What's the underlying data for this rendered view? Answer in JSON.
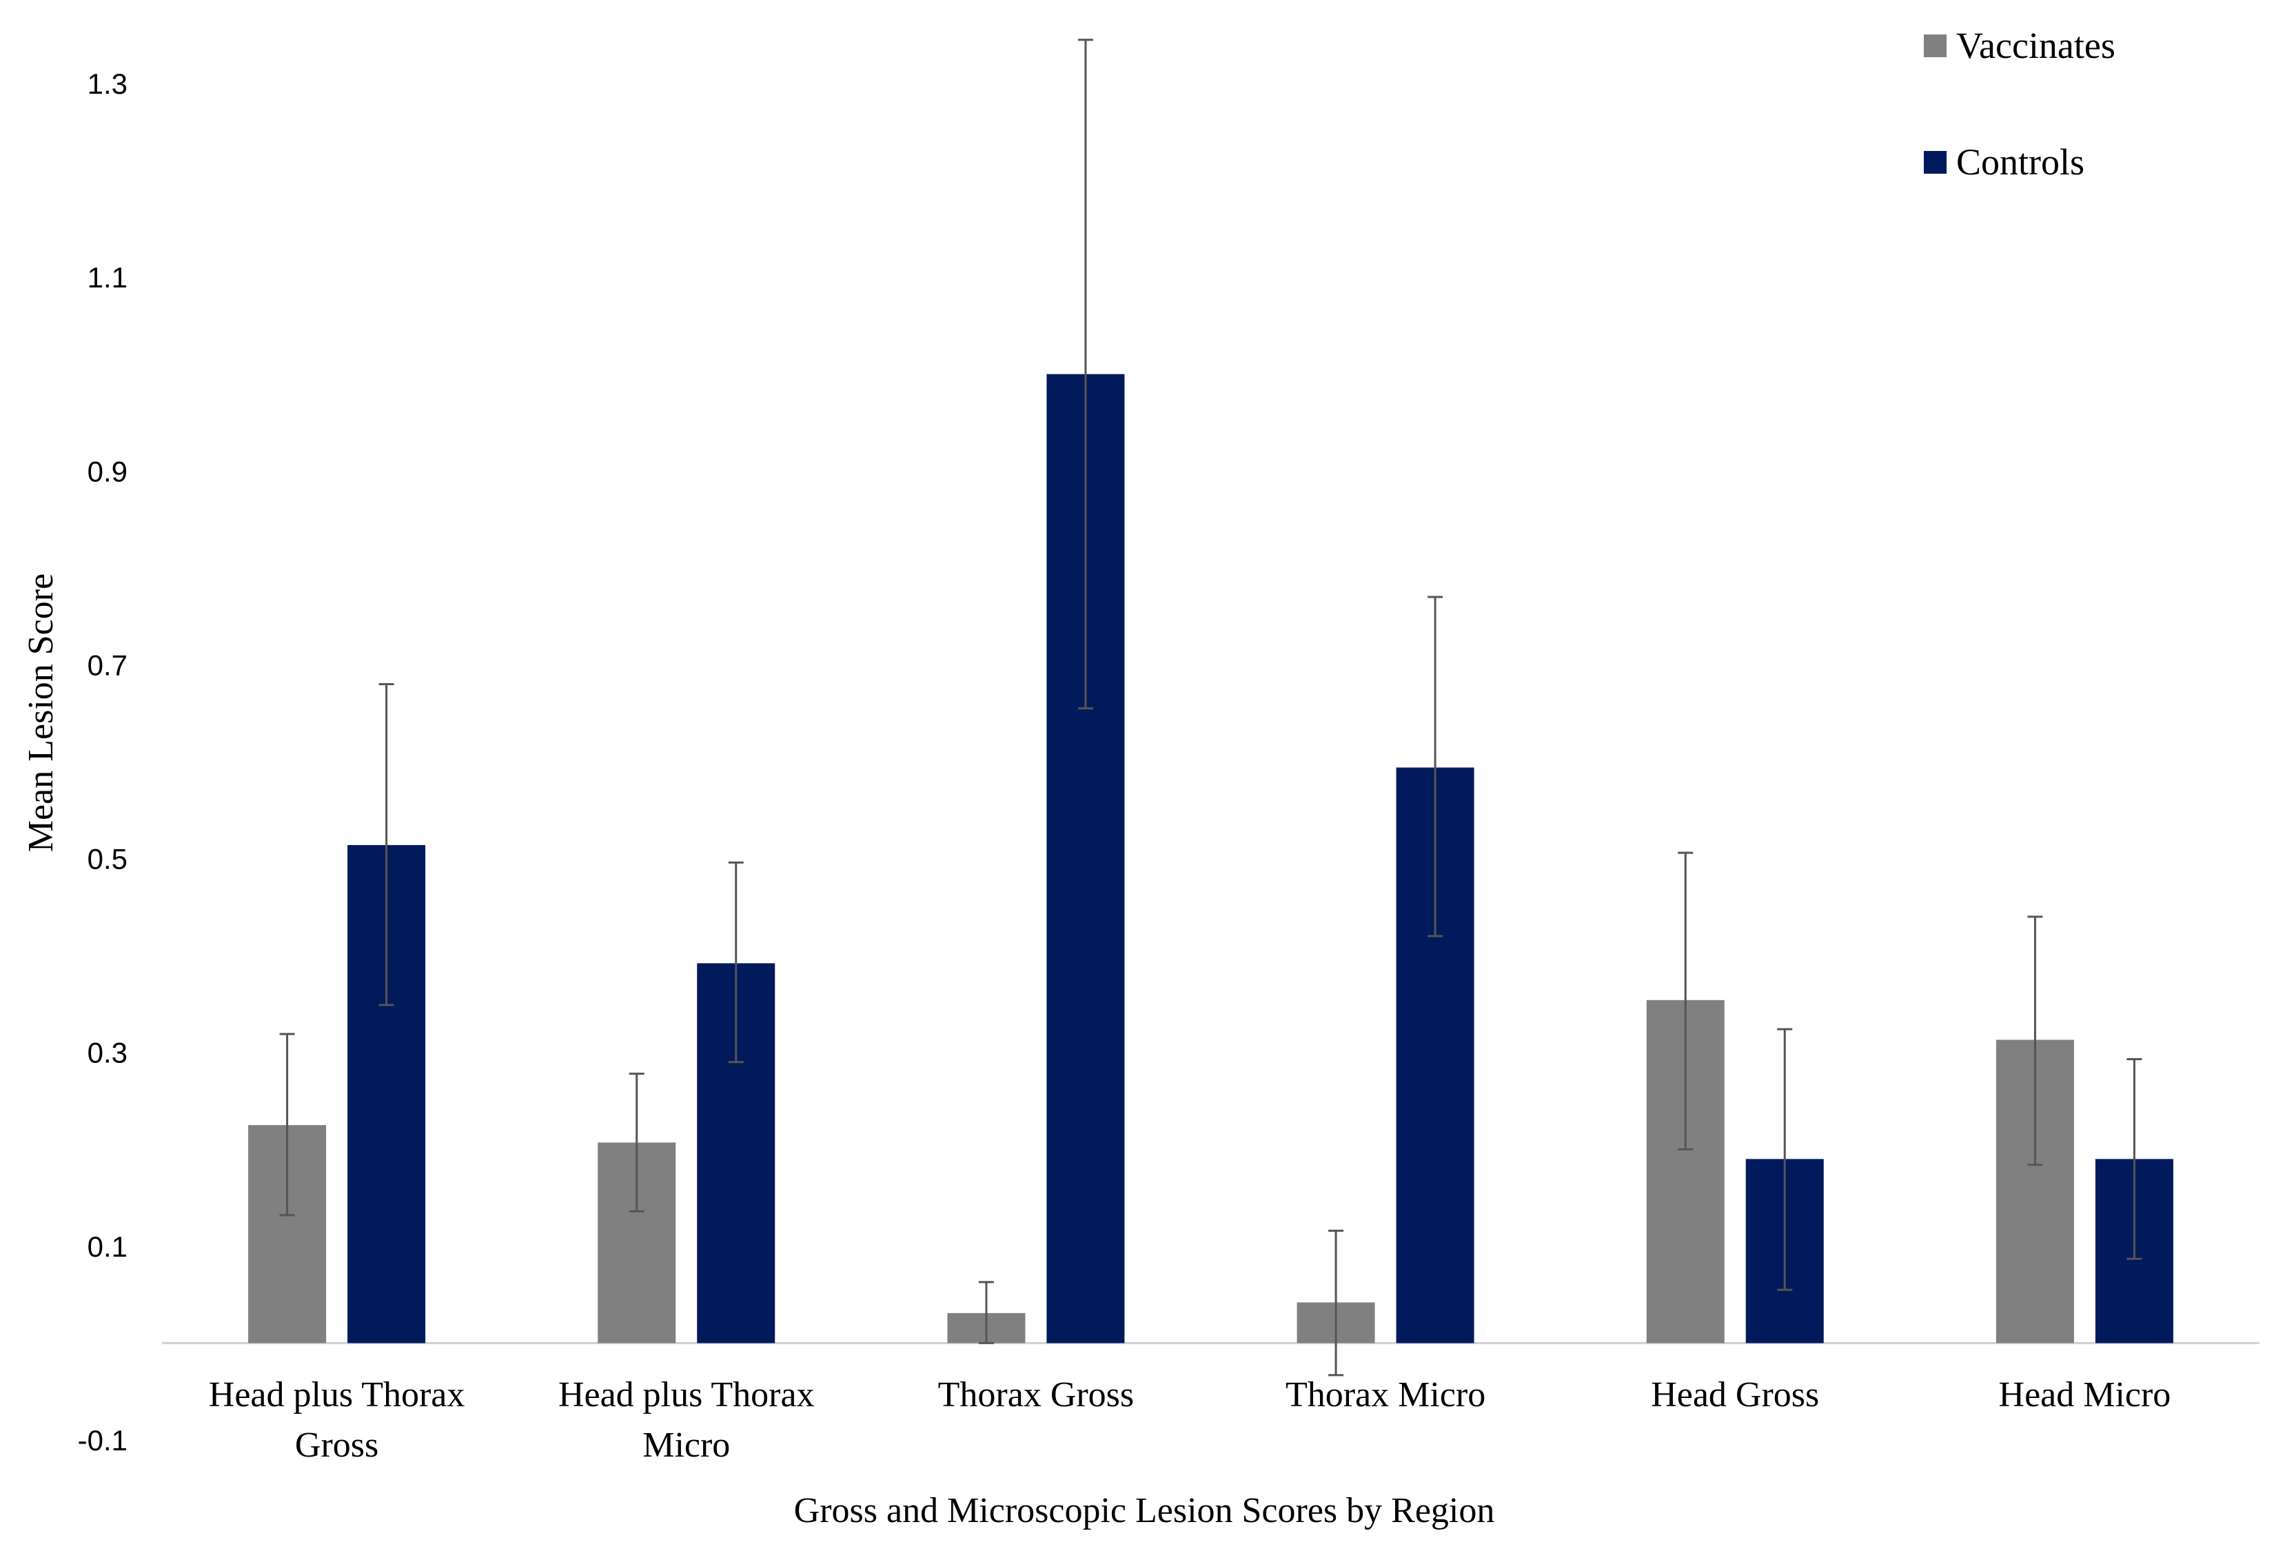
{
  "chart_data": {
    "type": "bar",
    "xlabel": "Gross and Microscopic Lesion Scores by Region",
    "ylabel": "Mean Lesion Score",
    "ylim": [
      -0.1,
      1.3
    ],
    "yticks": [
      "1.3",
      "1.1",
      "0.9",
      "0.7",
      "0.5",
      "0.3",
      "0.1",
      "-0.1"
    ],
    "ytick_values": [
      1.3,
      1.1,
      0.9,
      0.7,
      0.5,
      0.3,
      0.1,
      -0.1
    ],
    "grid": false,
    "legend_position": "top-right",
    "categories": [
      [
        "Head plus Thorax",
        "Gross"
      ],
      [
        "Head plus Thorax",
        "Micro"
      ],
      [
        "Thorax Gross"
      ],
      [
        "Thorax Micro"
      ],
      [
        "Head Gross"
      ],
      [
        "Head Micro"
      ]
    ],
    "series": [
      {
        "name": "Vaccinates",
        "color": "#808080",
        "values": [
          0.225,
          0.207,
          0.031,
          0.042,
          0.354,
          0.313
        ],
        "error_low": [
          0.132,
          0.136,
          0.0,
          -0.033,
          0.2,
          0.184
        ],
        "error_high": [
          0.319,
          0.278,
          0.063,
          0.116,
          0.506,
          0.44
        ]
      },
      {
        "name": "Controls",
        "color": "#001A5C",
        "values": [
          0.514,
          0.392,
          1.0,
          0.594,
          0.19,
          0.19
        ],
        "error_low": [
          0.349,
          0.29,
          0.655,
          0.42,
          0.055,
          0.087
        ],
        "error_high": [
          0.68,
          0.496,
          1.345,
          0.77,
          0.324,
          0.293
        ]
      }
    ]
  }
}
